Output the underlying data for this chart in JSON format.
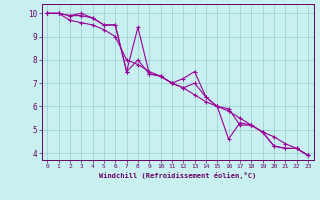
{
  "title": "",
  "xlabel": "Windchill (Refroidissement éolien,°C)",
  "ylabel": "",
  "bg_color": "#c8f0f0",
  "line_color": "#990099",
  "x_min": -0.5,
  "x_max": 23.5,
  "y_min": 3.7,
  "y_max": 10.4,
  "xticks": [
    0,
    1,
    2,
    3,
    4,
    5,
    6,
    7,
    8,
    9,
    10,
    11,
    12,
    13,
    14,
    15,
    16,
    17,
    18,
    19,
    20,
    21,
    22,
    23
  ],
  "yticks": [
    4,
    5,
    6,
    7,
    8,
    9,
    10
  ],
  "line1": {
    "x": [
      0,
      1,
      2,
      3,
      4,
      5,
      6,
      7,
      8,
      9,
      10,
      11,
      12,
      13,
      14,
      15,
      16,
      17,
      18,
      19,
      20,
      21,
      22,
      23
    ],
    "y": [
      10.0,
      10.0,
      9.9,
      10.0,
      9.8,
      9.5,
      9.5,
      7.5,
      9.4,
      7.4,
      7.3,
      7.0,
      7.2,
      7.5,
      6.4,
      6.0,
      4.6,
      5.3,
      5.2,
      4.9,
      4.3,
      4.2,
      4.2,
      3.9
    ]
  },
  "line2": {
    "x": [
      0,
      1,
      2,
      3,
      4,
      5,
      6,
      7,
      8,
      9,
      10,
      11,
      12,
      13,
      14,
      15,
      16,
      17,
      18,
      19,
      20,
      21,
      22,
      23
    ],
    "y": [
      10.0,
      10.0,
      9.9,
      9.9,
      9.8,
      9.5,
      9.5,
      7.5,
      8.0,
      7.4,
      7.3,
      7.0,
      6.8,
      7.0,
      6.4,
      6.0,
      5.9,
      5.2,
      5.2,
      4.9,
      4.3,
      4.2,
      4.2,
      3.9
    ]
  },
  "line3": {
    "x": [
      0,
      1,
      2,
      3,
      4,
      5,
      6,
      7,
      8,
      9,
      10,
      11,
      12,
      13,
      14,
      15,
      16,
      17,
      18,
      19,
      20,
      21,
      22,
      23
    ],
    "y": [
      10.0,
      10.0,
      9.7,
      9.6,
      9.5,
      9.3,
      9.0,
      8.0,
      7.8,
      7.5,
      7.3,
      7.0,
      6.8,
      6.5,
      6.2,
      6.0,
      5.8,
      5.5,
      5.2,
      4.9,
      4.7,
      4.4,
      4.2,
      3.9
    ]
  },
  "grid_color": "#99cccc",
  "spine_color": "#660066",
  "tick_color": "#660066",
  "label_color": "#660066",
  "marker": "+",
  "markersize": 3,
  "linewidth": 0.8
}
